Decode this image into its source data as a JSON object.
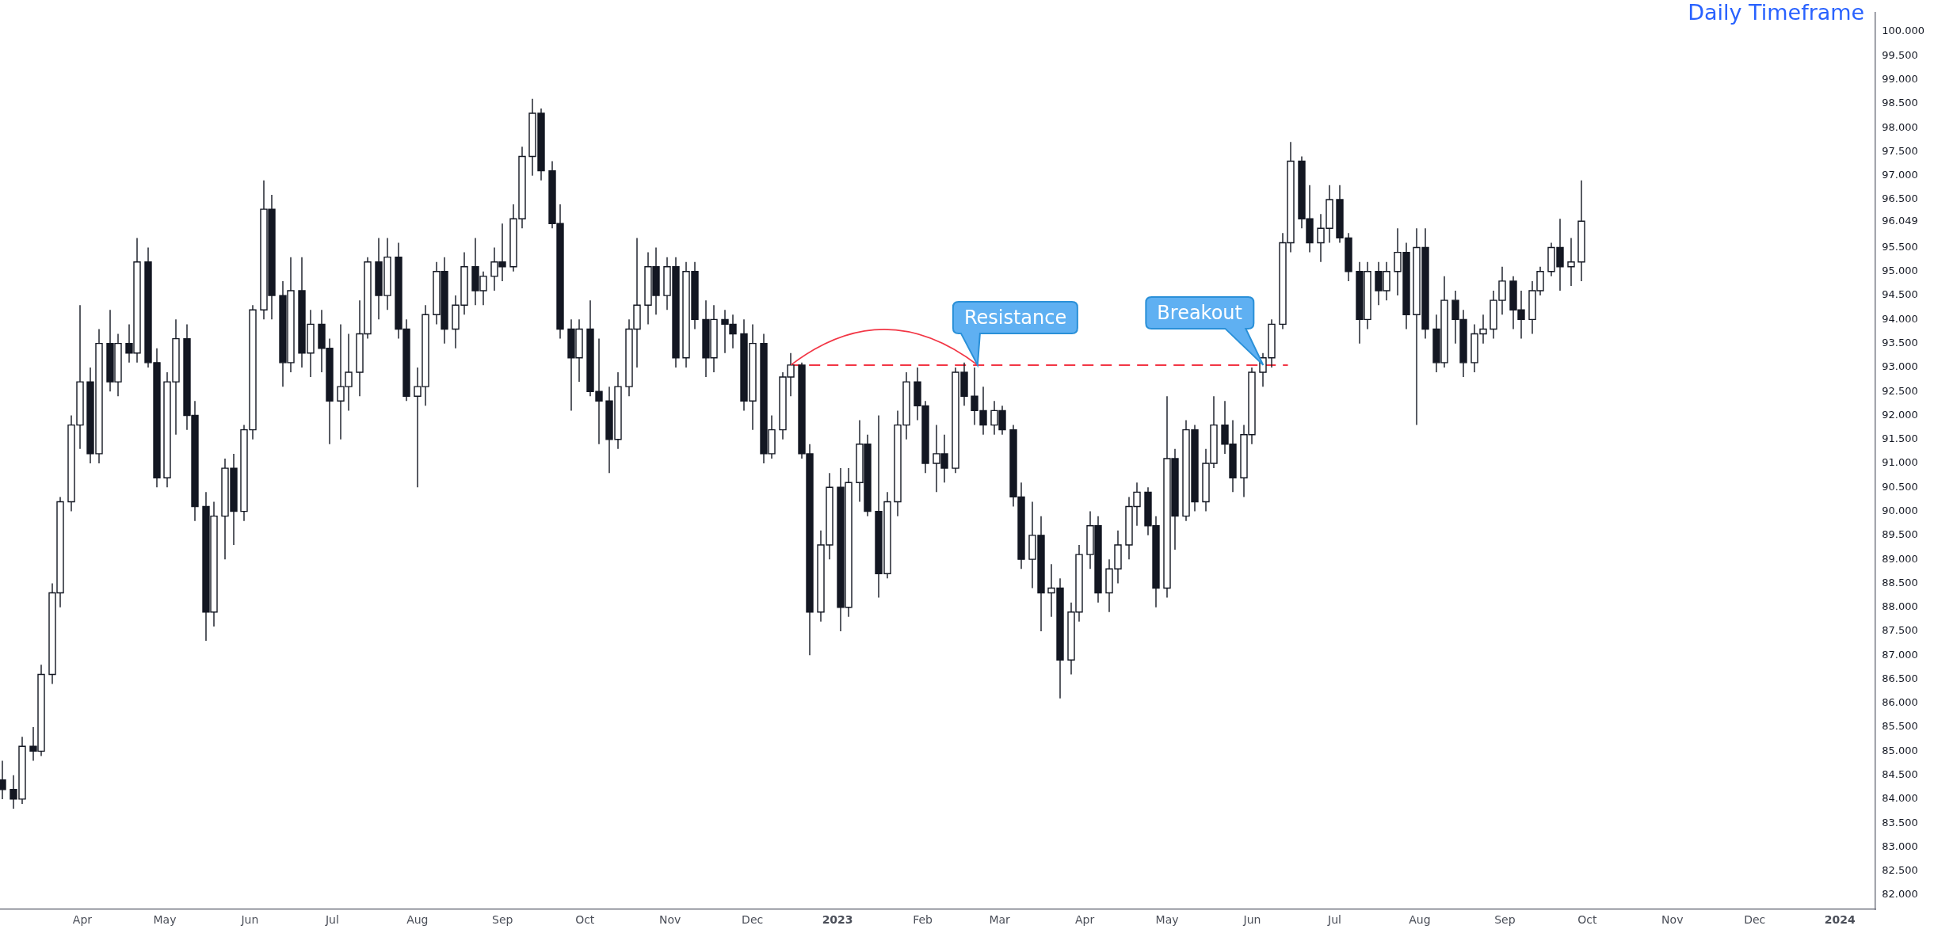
{
  "chart_data": {
    "type": "candlestick",
    "title": "Daily Timeframe",
    "x": [
      "2022-03-03",
      "2022-03-07",
      "2022-03-10",
      "2022-03-14",
      "2022-03-17",
      "2022-03-21",
      "2022-03-24",
      "2022-03-28",
      "2022-03-31",
      "2022-04-04",
      "2022-04-07",
      "2022-04-11",
      "2022-04-14",
      "2022-04-18",
      "2022-04-21",
      "2022-04-25",
      "2022-04-28",
      "2022-05-02",
      "2022-05-05",
      "2022-05-09",
      "2022-05-12",
      "2022-05-16",
      "2022-05-19",
      "2022-05-23",
      "2022-05-26",
      "2022-05-30",
      "2022-06-02",
      "2022-06-06",
      "2022-06-09",
      "2022-06-13",
      "2022-06-16",
      "2022-06-20",
      "2022-06-23",
      "2022-06-27",
      "2022-06-30",
      "2022-07-04",
      "2022-07-07",
      "2022-07-11",
      "2022-07-14",
      "2022-07-18",
      "2022-07-21",
      "2022-07-25",
      "2022-07-28",
      "2022-08-01",
      "2022-08-04",
      "2022-08-08",
      "2022-08-11",
      "2022-08-15",
      "2022-08-18",
      "2022-08-22",
      "2022-08-25",
      "2022-08-29",
      "2022-09-01",
      "2022-09-05",
      "2022-09-08",
      "2022-09-12",
      "2022-09-15",
      "2022-09-19",
      "2022-09-22",
      "2022-09-26",
      "2022-09-29",
      "2022-10-03",
      "2022-10-06",
      "2022-10-10",
      "2022-10-13",
      "2022-10-17",
      "2022-10-20",
      "2022-10-24",
      "2022-10-27",
      "2022-10-31",
      "2022-11-03",
      "2022-11-07",
      "2022-11-10",
      "2022-11-14",
      "2022-11-17",
      "2022-11-21",
      "2022-11-24",
      "2022-11-28",
      "2022-12-01",
      "2022-12-05",
      "2022-12-08",
      "2022-12-12",
      "2022-12-15",
      "2022-12-19",
      "2022-12-22",
      "2022-12-26",
      "2022-12-29",
      "2023-01-02",
      "2023-01-05",
      "2023-01-09",
      "2023-01-12",
      "2023-01-16",
      "2023-01-19",
      "2023-01-23",
      "2023-01-26",
      "2023-01-30",
      "2023-02-02",
      "2023-02-06",
      "2023-02-09",
      "2023-02-13",
      "2023-02-16",
      "2023-02-20",
      "2023-02-23",
      "2023-02-27",
      "2023-03-02",
      "2023-03-06",
      "2023-03-09",
      "2023-03-13",
      "2023-03-16",
      "2023-03-20",
      "2023-03-23",
      "2023-03-27",
      "2023-03-30",
      "2023-04-03",
      "2023-04-06",
      "2023-04-10",
      "2023-04-13",
      "2023-04-17",
      "2023-04-20",
      "2023-04-24",
      "2023-04-27",
      "2023-05-01",
      "2023-05-04",
      "2023-05-08",
      "2023-05-11",
      "2023-05-15",
      "2023-05-18",
      "2023-05-22",
      "2023-05-25",
      "2023-05-29",
      "2023-06-01",
      "2023-06-05",
      "2023-06-08",
      "2023-06-12",
      "2023-06-15",
      "2023-06-19",
      "2023-06-22",
      "2023-06-26",
      "2023-06-29",
      "2023-07-03",
      "2023-07-06",
      "2023-07-10",
      "2023-07-13",
      "2023-07-17",
      "2023-07-20",
      "2023-07-24",
      "2023-07-27",
      "2023-07-31",
      "2023-08-03",
      "2023-08-07",
      "2023-08-10",
      "2023-08-14",
      "2023-08-17",
      "2023-08-21",
      "2023-08-24",
      "2023-08-28",
      "2023-08-31",
      "2023-09-04",
      "2023-09-07",
      "2023-09-11",
      "2023-09-14",
      "2023-09-18",
      "2023-09-21",
      "2023-09-25",
      "2023-09-29"
    ],
    "ohlc": [
      [
        84.4,
        84.8,
        84.0,
        84.2
      ],
      [
        84.2,
        84.5,
        83.8,
        84.0
      ],
      [
        84.0,
        85.3,
        83.9,
        85.1
      ],
      [
        85.1,
        85.5,
        84.8,
        85.0
      ],
      [
        85.0,
        86.8,
        84.9,
        86.6
      ],
      [
        86.6,
        88.5,
        86.4,
        88.3
      ],
      [
        88.3,
        90.3,
        88.0,
        90.2
      ],
      [
        90.2,
        92.0,
        90.0,
        91.8
      ],
      [
        91.8,
        94.3,
        91.3,
        92.7
      ],
      [
        92.7,
        93.0,
        91.0,
        91.2
      ],
      [
        91.2,
        93.8,
        91.0,
        93.5
      ],
      [
        93.5,
        94.2,
        92.5,
        92.7
      ],
      [
        92.7,
        93.7,
        92.4,
        93.5
      ],
      [
        93.5,
        93.9,
        93.1,
        93.3
      ],
      [
        93.3,
        95.7,
        93.1,
        95.2
      ],
      [
        95.2,
        95.5,
        93.0,
        93.1
      ],
      [
        93.1,
        93.4,
        90.5,
        90.7
      ],
      [
        90.7,
        92.9,
        90.5,
        92.7
      ],
      [
        92.7,
        94.0,
        91.6,
        93.6
      ],
      [
        93.6,
        93.9,
        91.7,
        92.0
      ],
      [
        92.0,
        92.3,
        89.8,
        90.1
      ],
      [
        90.1,
        90.4,
        87.3,
        87.9
      ],
      [
        87.9,
        90.2,
        87.6,
        89.9
      ],
      [
        89.9,
        91.1,
        89.0,
        90.9
      ],
      [
        90.9,
        91.2,
        89.3,
        90.0
      ],
      [
        90.0,
        91.8,
        89.8,
        91.7
      ],
      [
        91.7,
        94.3,
        91.5,
        94.2
      ],
      [
        94.2,
        96.9,
        94.0,
        96.3
      ],
      [
        96.3,
        96.6,
        94.0,
        94.5
      ],
      [
        94.5,
        94.8,
        92.6,
        93.1
      ],
      [
        93.1,
        95.3,
        92.9,
        94.6
      ],
      [
        94.6,
        95.3,
        93.0,
        93.3
      ],
      [
        93.3,
        94.2,
        92.8,
        93.9
      ],
      [
        93.9,
        94.2,
        92.9,
        93.4
      ],
      [
        93.4,
        93.6,
        91.4,
        92.3
      ],
      [
        92.3,
        93.9,
        91.5,
        92.6
      ],
      [
        92.6,
        93.7,
        92.1,
        92.9
      ],
      [
        92.9,
        94.4,
        92.4,
        93.7
      ],
      [
        93.7,
        95.3,
        93.6,
        95.2
      ],
      [
        95.2,
        95.7,
        94.0,
        94.5
      ],
      [
        94.5,
        95.7,
        94.2,
        95.3
      ],
      [
        95.3,
        95.6,
        93.6,
        93.8
      ],
      [
        93.8,
        94.0,
        92.3,
        92.4
      ],
      [
        92.4,
        93.0,
        90.5,
        92.6
      ],
      [
        92.6,
        94.3,
        92.2,
        94.1
      ],
      [
        94.1,
        95.2,
        93.9,
        95.0
      ],
      [
        95.0,
        95.3,
        93.5,
        93.8
      ],
      [
        93.8,
        94.5,
        93.4,
        94.3
      ],
      [
        94.3,
        95.4,
        94.1,
        95.1
      ],
      [
        95.1,
        95.7,
        94.3,
        94.6
      ],
      [
        94.6,
        95.0,
        94.3,
        94.9
      ],
      [
        94.9,
        95.5,
        94.6,
        95.2
      ],
      [
        95.2,
        96.0,
        94.8,
        95.1
      ],
      [
        95.1,
        96.4,
        95.0,
        96.1
      ],
      [
        96.1,
        97.6,
        95.9,
        97.4
      ],
      [
        97.4,
        98.6,
        97.0,
        98.3
      ],
      [
        98.3,
        98.4,
        96.9,
        97.1
      ],
      [
        97.1,
        97.3,
        95.9,
        96.0
      ],
      [
        96.0,
        96.4,
        93.6,
        93.8
      ],
      [
        93.8,
        94.0,
        92.1,
        93.2
      ],
      [
        93.2,
        94.0,
        92.7,
        93.8
      ],
      [
        93.8,
        94.4,
        92.4,
        92.5
      ],
      [
        92.5,
        93.6,
        91.4,
        92.3
      ],
      [
        92.3,
        92.6,
        90.8,
        91.5
      ],
      [
        91.5,
        92.9,
        91.3,
        92.6
      ],
      [
        92.6,
        94.0,
        92.4,
        93.8
      ],
      [
        93.8,
        95.7,
        93.0,
        94.3
      ],
      [
        94.3,
        95.4,
        93.9,
        95.1
      ],
      [
        95.1,
        95.5,
        94.1,
        94.5
      ],
      [
        94.5,
        95.3,
        94.2,
        95.1
      ],
      [
        95.1,
        95.3,
        93.0,
        93.2
      ],
      [
        93.2,
        95.2,
        93.0,
        95.0
      ],
      [
        95.0,
        95.2,
        93.8,
        94.0
      ],
      [
        94.0,
        94.4,
        92.8,
        93.2
      ],
      [
        93.2,
        94.3,
        92.9,
        94.0
      ],
      [
        94.0,
        94.2,
        93.3,
        93.9
      ],
      [
        93.9,
        94.1,
        93.4,
        93.7
      ],
      [
        93.7,
        94.0,
        92.1,
        92.3
      ],
      [
        92.3,
        93.9,
        91.7,
        93.5
      ],
      [
        93.5,
        93.7,
        91.0,
        91.2
      ],
      [
        91.2,
        92.0,
        91.1,
        91.7
      ],
      [
        91.7,
        92.9,
        91.5,
        92.8
      ],
      [
        92.8,
        93.3,
        92.4,
        93.05
      ],
      [
        93.05,
        93.1,
        91.1,
        91.2
      ],
      [
        91.2,
        91.4,
        87.0,
        87.9
      ],
      [
        87.9,
        89.6,
        87.7,
        89.3
      ],
      [
        89.3,
        90.8,
        89.0,
        90.5
      ],
      [
        90.5,
        90.9,
        87.5,
        88.0
      ],
      [
        88.0,
        90.9,
        87.8,
        90.6
      ],
      [
        90.6,
        91.9,
        90.2,
        91.4
      ],
      [
        91.4,
        91.6,
        89.9,
        90.0
      ],
      [
        90.0,
        92.0,
        88.2,
        88.7
      ],
      [
        88.7,
        90.4,
        88.6,
        90.2
      ],
      [
        90.2,
        92.1,
        89.9,
        91.8
      ],
      [
        91.8,
        92.9,
        91.5,
        92.7
      ],
      [
        92.7,
        93.0,
        91.9,
        92.2
      ],
      [
        92.2,
        92.3,
        90.8,
        91.0
      ],
      [
        91.0,
        91.8,
        90.4,
        91.2
      ],
      [
        91.2,
        91.6,
        90.6,
        90.9
      ],
      [
        90.9,
        93.0,
        90.8,
        92.9
      ],
      [
        92.9,
        93.1,
        92.2,
        92.4
      ],
      [
        92.4,
        93.0,
        91.8,
        92.1
      ],
      [
        92.1,
        92.6,
        91.6,
        91.8
      ],
      [
        91.8,
        92.3,
        91.6,
        92.1
      ],
      [
        92.1,
        92.2,
        91.6,
        91.7
      ],
      [
        91.7,
        91.8,
        90.1,
        90.3
      ],
      [
        90.3,
        90.6,
        88.8,
        89.0
      ],
      [
        89.0,
        90.2,
        88.4,
        89.5
      ],
      [
        89.5,
        89.9,
        87.5,
        88.3
      ],
      [
        88.3,
        88.9,
        87.8,
        88.4
      ],
      [
        88.4,
        88.6,
        86.1,
        86.9
      ],
      [
        86.9,
        88.1,
        86.6,
        87.9
      ],
      [
        87.9,
        89.3,
        87.7,
        89.1
      ],
      [
        89.1,
        90.0,
        88.8,
        89.7
      ],
      [
        89.7,
        89.9,
        88.1,
        88.3
      ],
      [
        88.3,
        89.0,
        87.9,
        88.8
      ],
      [
        88.8,
        89.6,
        88.5,
        89.3
      ],
      [
        89.3,
        90.3,
        89.0,
        90.1
      ],
      [
        90.1,
        90.6,
        89.7,
        90.4
      ],
      [
        90.4,
        90.5,
        89.5,
        89.7
      ],
      [
        89.7,
        89.9,
        88.0,
        88.4
      ],
      [
        88.4,
        92.4,
        88.2,
        91.1
      ],
      [
        91.1,
        91.3,
        89.2,
        89.9
      ],
      [
        89.9,
        91.9,
        89.8,
        91.7
      ],
      [
        91.7,
        91.8,
        90.0,
        90.2
      ],
      [
        90.2,
        91.3,
        90.0,
        91.0
      ],
      [
        91.0,
        92.4,
        90.9,
        91.8
      ],
      [
        91.8,
        92.3,
        91.2,
        91.4
      ],
      [
        91.4,
        91.9,
        90.4,
        90.7
      ],
      [
        90.7,
        91.8,
        90.3,
        91.6
      ],
      [
        91.6,
        93.0,
        91.4,
        92.9
      ],
      [
        92.9,
        93.3,
        92.6,
        93.2
      ],
      [
        93.2,
        94.0,
        93.0,
        93.9
      ],
      [
        93.9,
        95.8,
        93.8,
        95.6
      ],
      [
        95.6,
        97.7,
        95.4,
        97.3
      ],
      [
        97.3,
        97.4,
        95.9,
        96.1
      ],
      [
        96.1,
        96.8,
        95.4,
        95.6
      ],
      [
        95.6,
        96.2,
        95.2,
        95.9
      ],
      [
        95.9,
        96.8,
        95.6,
        96.5
      ],
      [
        96.5,
        96.8,
        95.6,
        95.7
      ],
      [
        95.7,
        95.8,
        94.8,
        95.0
      ],
      [
        95.0,
        95.2,
        93.5,
        94.0
      ],
      [
        94.0,
        95.2,
        93.8,
        95.0
      ],
      [
        95.0,
        95.2,
        94.3,
        94.6
      ],
      [
        94.6,
        95.2,
        94.4,
        95.0
      ],
      [
        95.0,
        95.9,
        94.5,
        95.4
      ],
      [
        95.4,
        95.6,
        93.8,
        94.1
      ],
      [
        94.1,
        95.9,
        91.8,
        95.5
      ],
      [
        95.5,
        95.9,
        93.6,
        93.8
      ],
      [
        93.8,
        94.1,
        92.9,
        93.1
      ],
      [
        93.1,
        94.9,
        93.0,
        94.4
      ],
      [
        94.4,
        94.6,
        93.5,
        94.0
      ],
      [
        94.0,
        94.2,
        92.8,
        93.1
      ],
      [
        93.1,
        93.9,
        92.9,
        93.7
      ],
      [
        93.7,
        94.1,
        93.5,
        93.8
      ],
      [
        93.8,
        94.6,
        93.6,
        94.4
      ],
      [
        94.4,
        95.1,
        94.1,
        94.8
      ],
      [
        94.8,
        94.9,
        93.8,
        94.2
      ],
      [
        94.2,
        94.6,
        93.6,
        94.0
      ],
      [
        94.0,
        94.8,
        93.7,
        94.6
      ],
      [
        94.6,
        95.1,
        94.5,
        95.0
      ],
      [
        95.0,
        95.6,
        94.9,
        95.5
      ],
      [
        95.5,
        96.1,
        94.6,
        95.1
      ],
      [
        95.1,
        95.7,
        94.7,
        95.2
      ],
      [
        95.2,
        96.9,
        94.8,
        96.049
      ]
    ],
    "series": [
      {
        "type": "line",
        "x": [
          "2022-12-15",
          "2023-06-14"
        ],
        "values": [
          93.05,
          93.05
        ],
        "color": "#f23645",
        "line_style": "dashed",
        "marker": "none"
      }
    ],
    "annotations": [
      {
        "text": "Resistance",
        "x": "2023-02-21",
        "y": 93.05
      },
      {
        "text": "Breakout",
        "x": "2023-06-05",
        "y": 93.05
      }
    ],
    "xlim": [
      "2022-03-02",
      "2024-01-14"
    ],
    "ylim": [
      81.7,
      100.4
    ],
    "xticks": [
      {
        "value": "2022-04-01",
        "label": "Apr"
      },
      {
        "value": "2022-05-01",
        "label": "May"
      },
      {
        "value": "2022-06-01",
        "label": "Jun"
      },
      {
        "value": "2022-07-01",
        "label": "Jul"
      },
      {
        "value": "2022-08-01",
        "label": "Aug"
      },
      {
        "value": "2022-09-01",
        "label": "Sep"
      },
      {
        "value": "2022-10-01",
        "label": "Oct"
      },
      {
        "value": "2022-11-01",
        "label": "Nov"
      },
      {
        "value": "2022-12-01",
        "label": "Dec"
      },
      {
        "value": "2023-01-01",
        "label": "2023"
      },
      {
        "value": "2023-02-01",
        "label": "Feb"
      },
      {
        "value": "2023-03-01",
        "label": "Mar"
      },
      {
        "value": "2023-04-01",
        "label": "Apr"
      },
      {
        "value": "2023-05-01",
        "label": "May"
      },
      {
        "value": "2023-06-01",
        "label": "Jun"
      },
      {
        "value": "2023-07-01",
        "label": "Jul"
      },
      {
        "value": "2023-08-01",
        "label": "Aug"
      },
      {
        "value": "2023-09-01",
        "label": "Sep"
      },
      {
        "value": "2023-10-01",
        "label": "Oct"
      },
      {
        "value": "2023-11-01",
        "label": "Nov"
      },
      {
        "value": "2023-12-01",
        "label": "Dec"
      },
      {
        "value": "2024-01-01",
        "label": "2024"
      }
    ],
    "yticks": [
      {
        "value": 82,
        "label": "82.000"
      },
      {
        "value": 82.5,
        "label": "82.500"
      },
      {
        "value": 83,
        "label": "83.000"
      },
      {
        "value": 83.5,
        "label": "83.500"
      },
      {
        "value": 84,
        "label": "84.000"
      },
      {
        "value": 84.5,
        "label": "84.500"
      },
      {
        "value": 85,
        "label": "85.000"
      },
      {
        "value": 85.5,
        "label": "85.500"
      },
      {
        "value": 86,
        "label": "86.000"
      },
      {
        "value": 86.5,
        "label": "86.500"
      },
      {
        "value": 87,
        "label": "87.000"
      },
      {
        "value": 87.5,
        "label": "87.500"
      },
      {
        "value": 88,
        "label": "88.000"
      },
      {
        "value": 88.5,
        "label": "88.500"
      },
      {
        "value": 89,
        "label": "89.000"
      },
      {
        "value": 89.5,
        "label": "89.500"
      },
      {
        "value": 90,
        "label": "90.000"
      },
      {
        "value": 90.5,
        "label": "90.500"
      },
      {
        "value": 91,
        "label": "91.000"
      },
      {
        "value": 91.5,
        "label": "91.500"
      },
      {
        "value": 92,
        "label": "92.000"
      },
      {
        "value": 92.5,
        "label": "92.500"
      },
      {
        "value": 93,
        "label": "93.000"
      },
      {
        "value": 93.5,
        "label": "93.500"
      },
      {
        "value": 94,
        "label": "94.000"
      },
      {
        "value": 94.5,
        "label": "94.500"
      },
      {
        "value": 95,
        "label": "95.000"
      },
      {
        "value": 95.5,
        "label": "95.500"
      },
      {
        "value": 96.049,
        "label": "96.049"
      },
      {
        "value": 96.5,
        "label": "96.500"
      },
      {
        "value": 97,
        "label": "97.000"
      },
      {
        "value": 97.5,
        "label": "97.500"
      },
      {
        "value": 98,
        "label": "98.000"
      },
      {
        "value": 98.5,
        "label": "98.500"
      },
      {
        "value": 99,
        "label": "99.000"
      },
      {
        "value": 99.5,
        "label": "99.500"
      },
      {
        "value": 100,
        "label": "100.000"
      }
    ],
    "grid": false,
    "legend": false
  }
}
